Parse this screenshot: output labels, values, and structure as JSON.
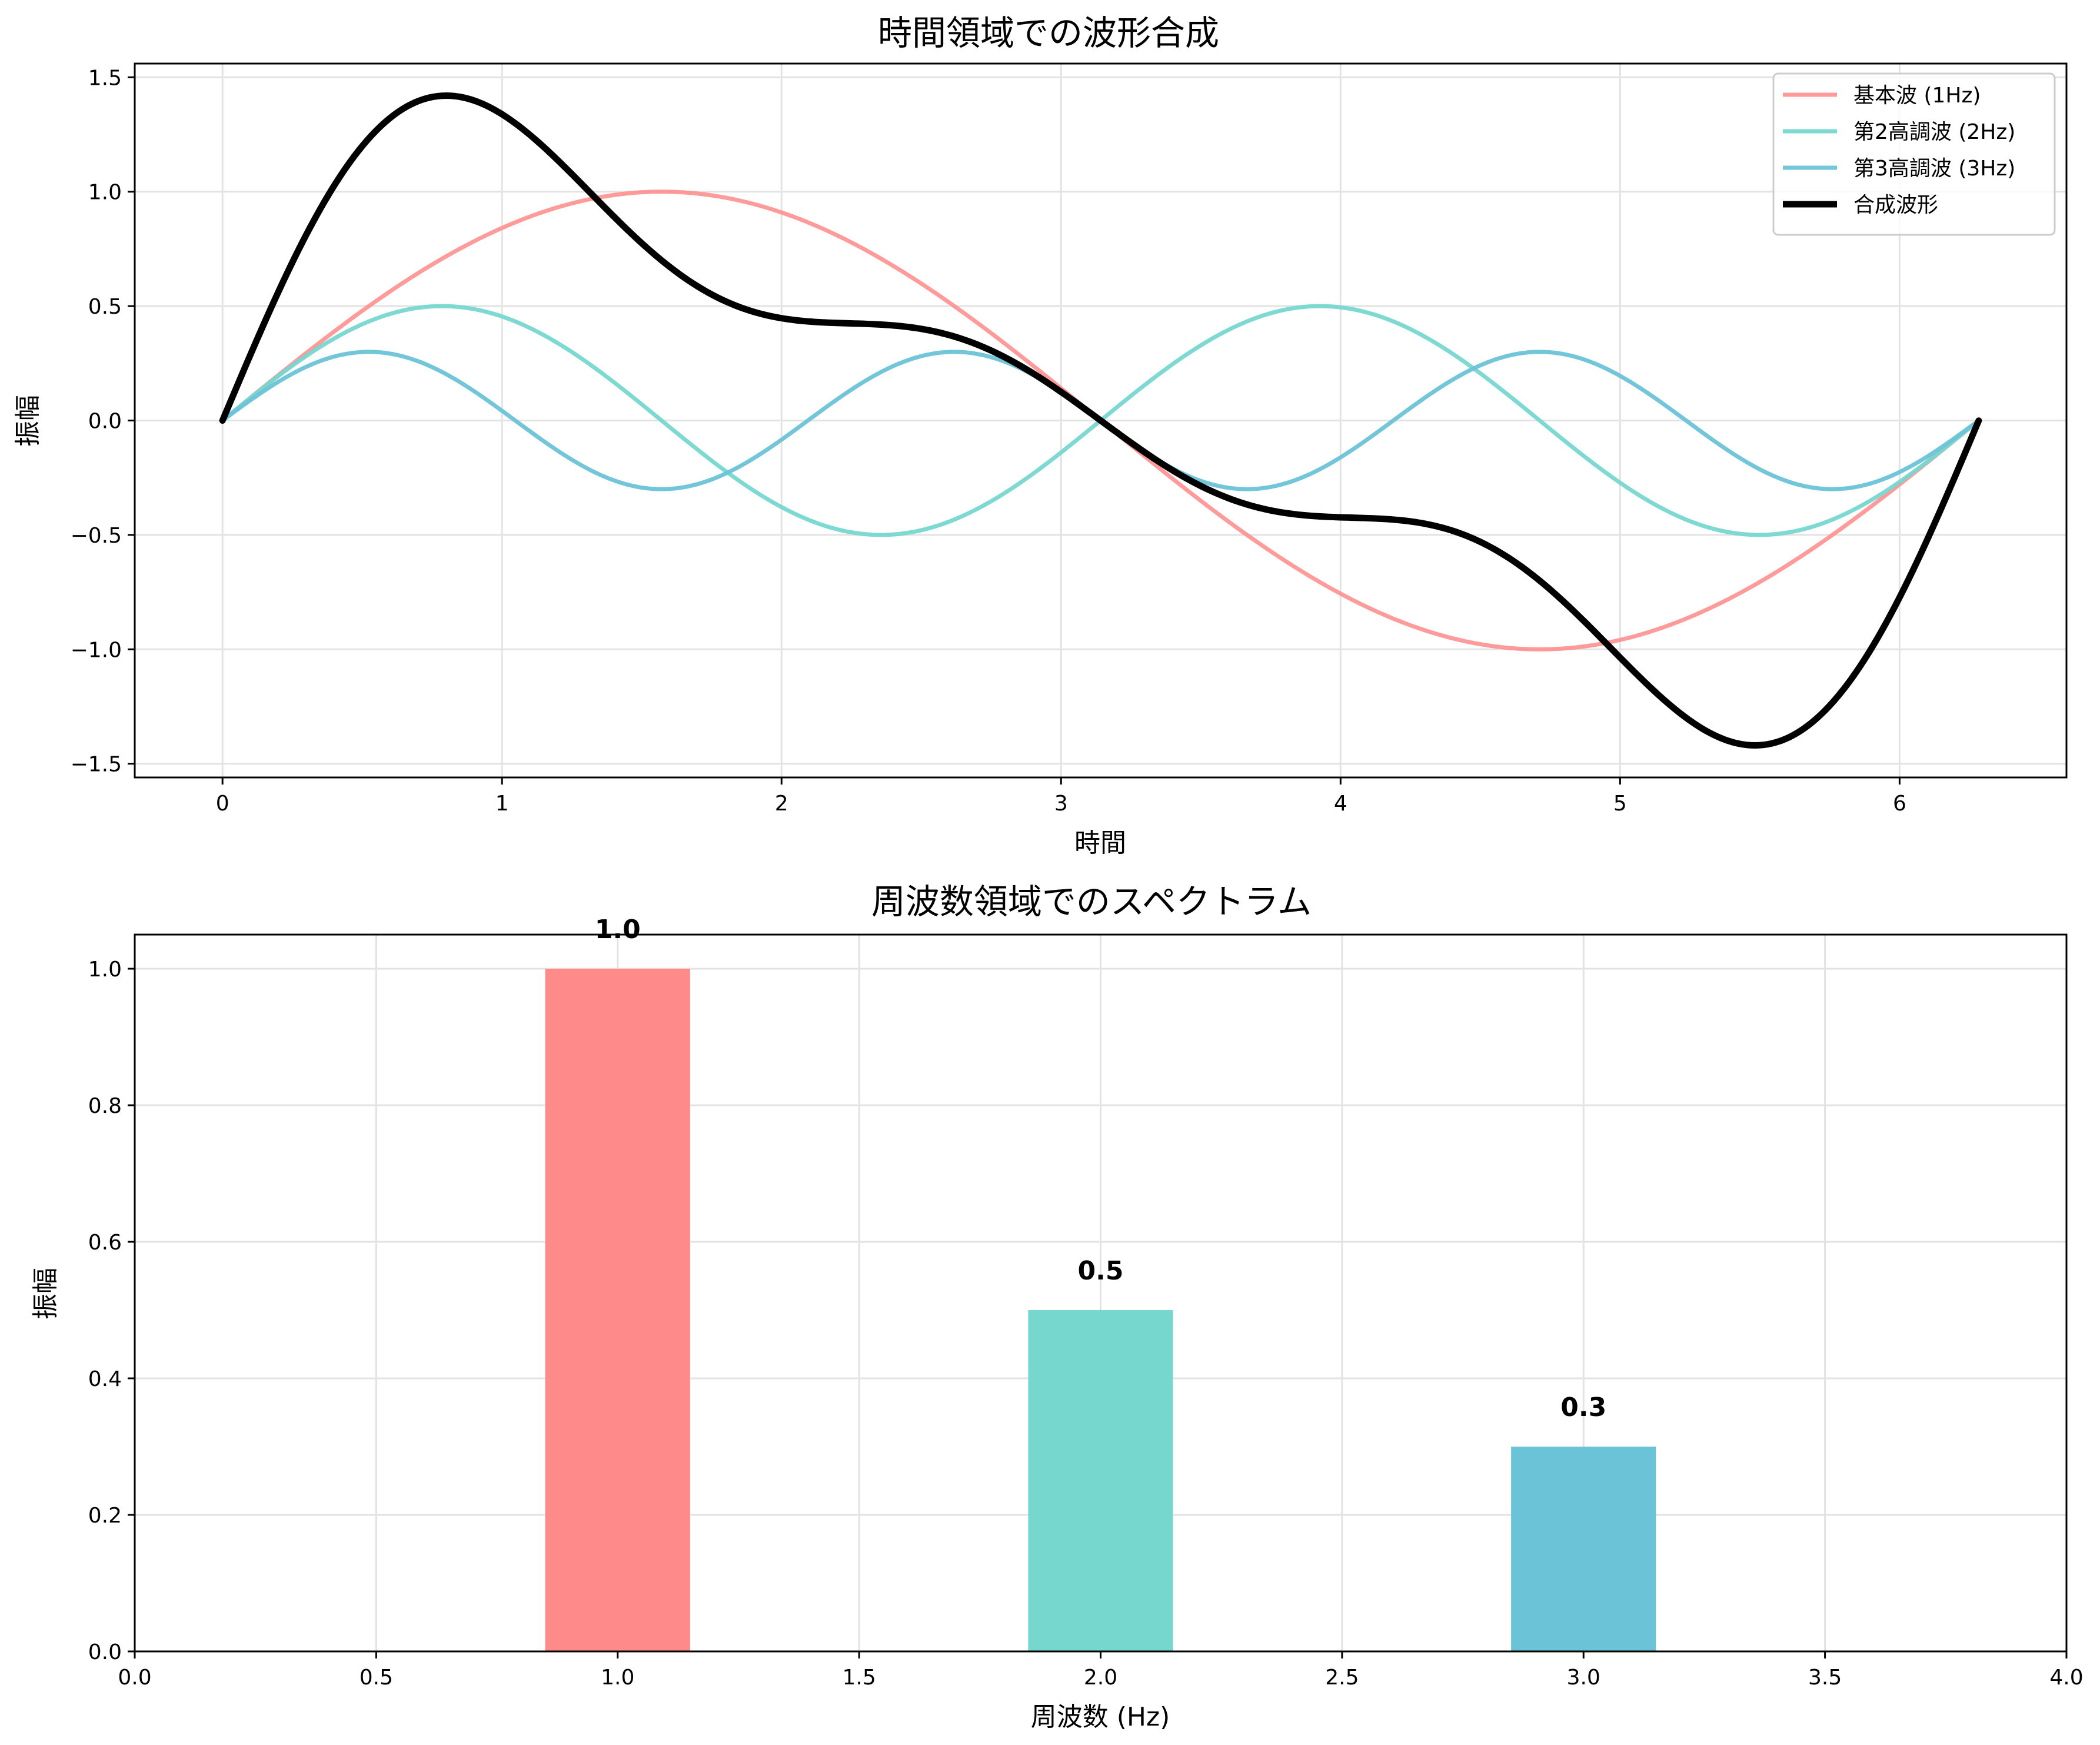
{
  "chart_data": [
    {
      "type": "line",
      "title": "時間領域での波形合成",
      "xlabel": "時間",
      "ylabel": "振幅",
      "xlim": [
        -0.314,
        6.597
      ],
      "ylim": [
        -1.56,
        1.56
      ],
      "xticks": [
        0,
        1,
        2,
        3,
        4,
        5,
        6
      ],
      "xtick_labels": [
        "0",
        "1",
        "2",
        "3",
        "4",
        "5",
        "6"
      ],
      "yticks": [
        -1.5,
        -1.0,
        -0.5,
        0.0,
        0.5,
        1.0,
        1.5
      ],
      "ytick_labels": [
        "−1.5",
        "−1.0",
        "−0.5",
        "0.0",
        "0.5",
        "1.0",
        "1.5"
      ],
      "grid": true,
      "legend_position": "top-right",
      "x_range": [
        0,
        6.283
      ],
      "series": [
        {
          "name": "基本波 (1Hz)",
          "function": "1.0*sin(1t)",
          "amplitude": 1.0,
          "harmonic": 1,
          "color": "#FF8A8A",
          "opacity": 0.85,
          "linewidth": 7
        },
        {
          "name": "第2高調波 (2Hz)",
          "function": "0.5*sin(2t)",
          "amplitude": 0.5,
          "harmonic": 2,
          "color": "#76D7CF",
          "opacity": 0.95,
          "linewidth": 7
        },
        {
          "name": "第3高調波 (3Hz)",
          "function": "0.3*sin(3t)",
          "amplitude": 0.3,
          "harmonic": 3,
          "color": "#6BC3D8",
          "opacity": 0.95,
          "linewidth": 7
        },
        {
          "name": "合成波形",
          "function": "sin(t)+0.5*sin(2t)+0.3*sin(3t)",
          "composite": true,
          "color": "#000000",
          "opacity": 1.0,
          "linewidth": 11
        }
      ]
    },
    {
      "type": "bar",
      "title": "周波数領域でのスペクトラム",
      "xlabel": "周波数 (Hz)",
      "ylabel": "振幅",
      "xlim": [
        0.0,
        4.0
      ],
      "ylim": [
        0.0,
        1.05
      ],
      "xticks": [
        0.0,
        0.5,
        1.0,
        1.5,
        2.0,
        2.5,
        3.0,
        3.5,
        4.0
      ],
      "xtick_labels": [
        "0.0",
        "0.5",
        "1.0",
        "1.5",
        "2.0",
        "2.5",
        "3.0",
        "3.5",
        "4.0"
      ],
      "yticks": [
        0.0,
        0.2,
        0.4,
        0.6,
        0.8,
        1.0
      ],
      "ytick_labels": [
        "0.0",
        "0.2",
        "0.4",
        "0.6",
        "0.8",
        "1.0"
      ],
      "grid": true,
      "bar_width": 0.3,
      "x": [
        1,
        2,
        3
      ],
      "values": [
        1.0,
        0.5,
        0.3
      ],
      "value_labels": [
        "1.0",
        "0.5",
        "0.3"
      ],
      "colors": [
        "#FF8A8A",
        "#76D7CF",
        "#6BC3D8"
      ]
    }
  ]
}
